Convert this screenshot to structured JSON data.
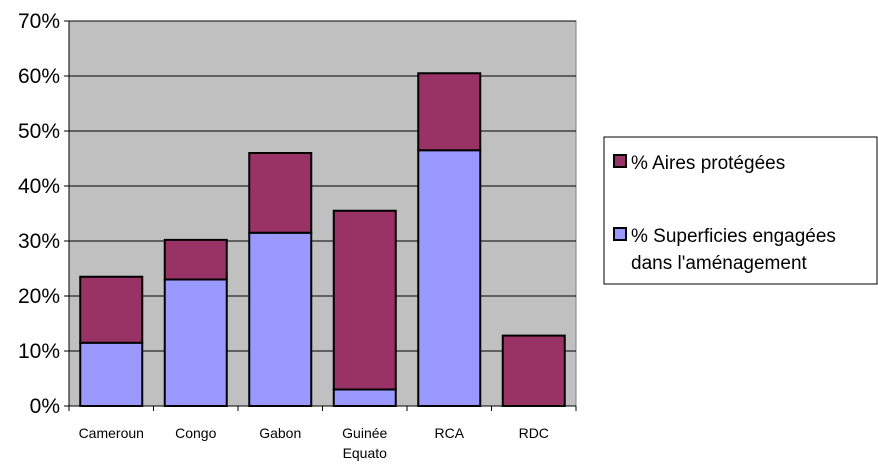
{
  "chart_data": {
    "type": "bar",
    "stacked": true,
    "title": "",
    "xlabel": "",
    "ylabel": "",
    "ylim": [
      0,
      70
    ],
    "y_tick_values": [
      0,
      10,
      20,
      30,
      40,
      50,
      60,
      70
    ],
    "y_tick_labels": [
      "0%",
      "10%",
      "20%",
      "30%",
      "40%",
      "50%",
      "60%",
      "70%"
    ],
    "categories": [
      [
        "Cameroun"
      ],
      [
        "Congo"
      ],
      [
        "Gabon"
      ],
      [
        "Guinée",
        "Equato"
      ],
      [
        "RCA"
      ],
      [
        "RDC"
      ]
    ],
    "series": [
      {
        "name_lines": [
          "% Superficies engagées",
          "dans l'aménagement"
        ],
        "values": [
          11.5,
          23,
          31.5,
          3,
          46.5,
          0
        ],
        "color": "#9999ff"
      },
      {
        "name_lines": [
          "% Aires protégées"
        ],
        "values": [
          12,
          7.2,
          14.5,
          32.5,
          14,
          12.8
        ],
        "color": "#993366"
      }
    ],
    "grid": true,
    "plot_background": "#c0c0c0",
    "legend_position": "right"
  }
}
